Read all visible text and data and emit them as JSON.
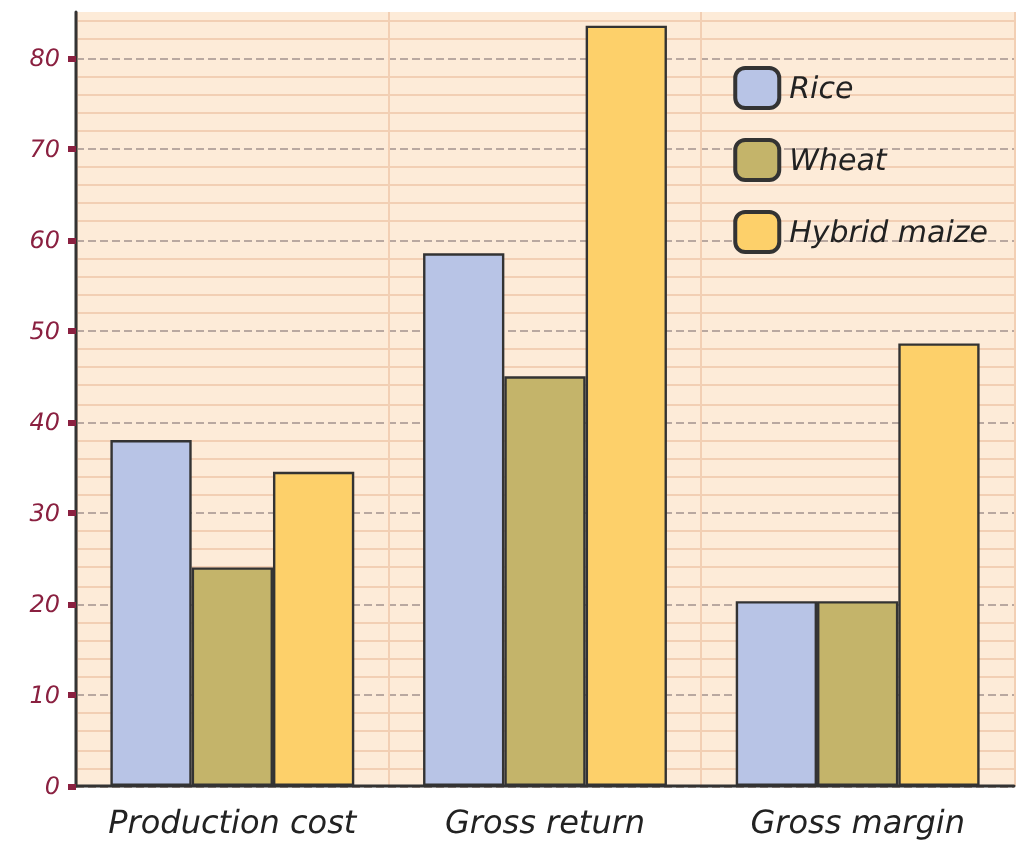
{
  "chart_data": {
    "type": "bar",
    "categories": [
      "Production cost",
      "Gross return",
      "Gross margin"
    ],
    "series": [
      {
        "name": "Rice",
        "color": "#b8c4e6",
        "values": [
          38,
          58.5,
          20.3
        ]
      },
      {
        "name": "Wheat",
        "color": "#c4b46a",
        "values": [
          24,
          45,
          20.3
        ]
      },
      {
        "name": "Hybrid maize",
        "color": "#fdd06a",
        "values": [
          34.5,
          83.5,
          48.6
        ]
      }
    ],
    "ylim": [
      0,
      85
    ],
    "yticks": [
      0,
      10,
      20,
      30,
      40,
      50,
      60,
      70,
      80
    ],
    "grid": true,
    "legend": "top right"
  }
}
